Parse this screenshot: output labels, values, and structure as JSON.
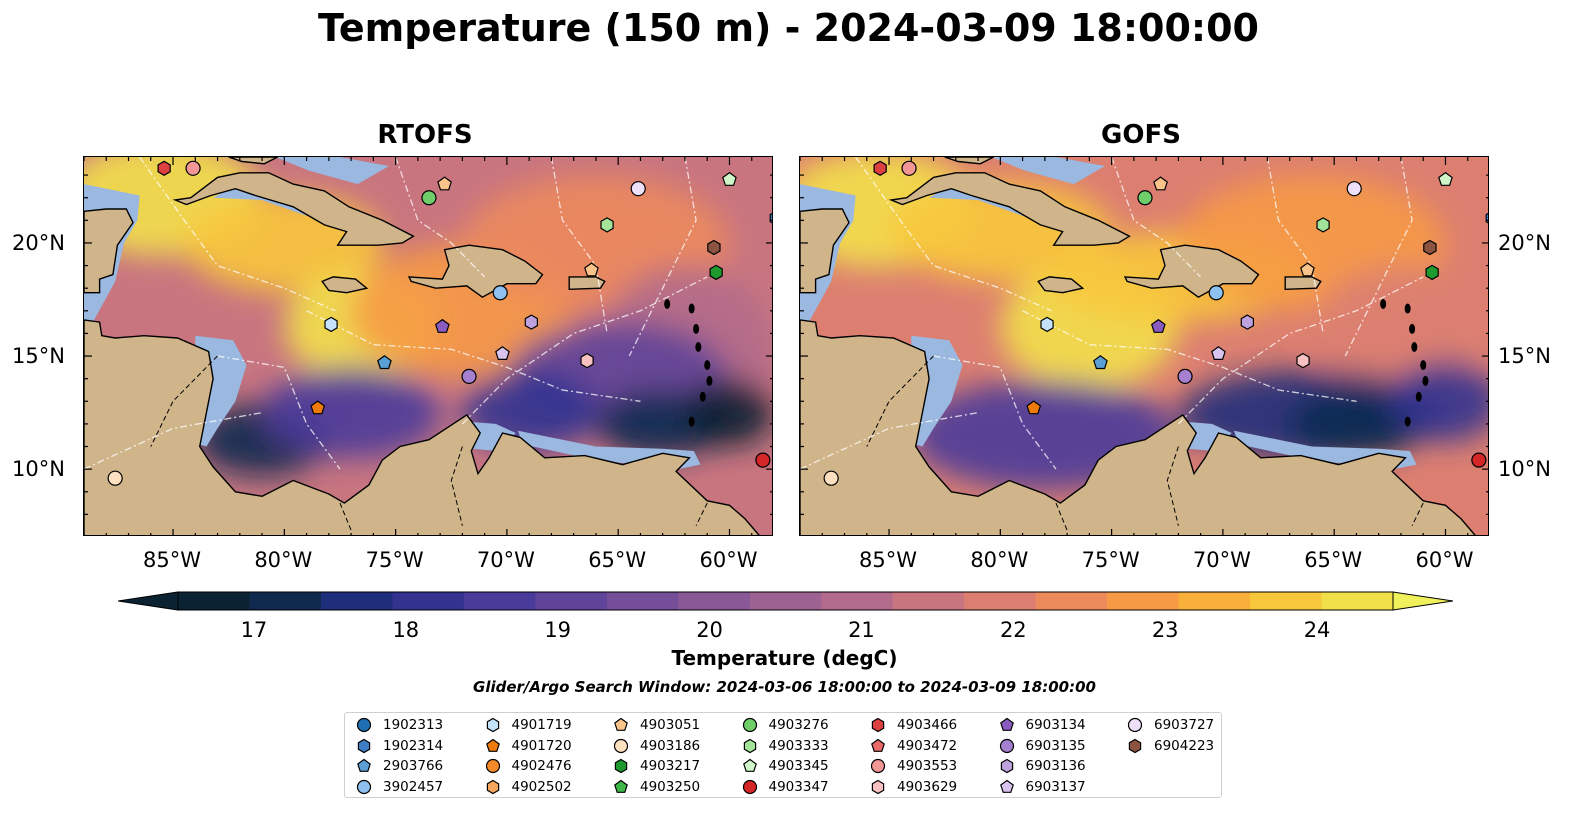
{
  "title": "Temperature (150 m) - 2024-03-09 18:00:00",
  "panels": [
    {
      "title": "RTOFS"
    },
    {
      "title": "GOFS"
    }
  ],
  "axes": {
    "lon_ticks": [
      "85°W",
      "80°W",
      "75°W",
      "70°W",
      "65°W",
      "60°W"
    ],
    "lat_ticks": [
      "20°N",
      "15°N",
      "10°N"
    ]
  },
  "colorbar": {
    "label": "Temperature (degC)",
    "ticks": [
      "17",
      "18",
      "19",
      "20",
      "21",
      "22",
      "23",
      "24"
    ],
    "min": 16.5,
    "max": 24.5,
    "colors": [
      "#0b2233",
      "#102a4f",
      "#1f2e7a",
      "#33338f",
      "#4a3a9a",
      "#5f4499",
      "#744e98",
      "#885996",
      "#9d6291",
      "#b26b8a",
      "#c87580",
      "#dc7f71",
      "#ec8a5c",
      "#f69a45",
      "#f9b03a",
      "#f8c73c",
      "#f2e04a"
    ],
    "extend_low_color": "#0b2233",
    "extend_high_color": "#f0f05a"
  },
  "search_window": "Glider/Argo Search Window: 2024-03-06 18:00:00 to 2024-03-09 18:00:00",
  "map_colors": {
    "land": "#d0b48a",
    "shelf": "#9ab8e0",
    "deep_cold": "#0c2030"
  },
  "legend": [
    {
      "id": "1902313",
      "marker": "circle",
      "color": "#1f6fb4"
    },
    {
      "id": "1902314",
      "marker": "hexagon",
      "color": "#3d7ec4"
    },
    {
      "id": "2903766",
      "marker": "pentagon",
      "color": "#5a9fd6"
    },
    {
      "id": "3902457",
      "marker": "circle",
      "color": "#8ec1ef"
    },
    {
      "id": "4901719",
      "marker": "hexagon",
      "color": "#c4e2fb"
    },
    {
      "id": "4901720",
      "marker": "pentagon",
      "color": "#f07a0a"
    },
    {
      "id": "4902476",
      "marker": "circle",
      "color": "#f58a2a"
    },
    {
      "id": "4902502",
      "marker": "hexagon",
      "color": "#f8a85e"
    },
    {
      "id": "4903051",
      "marker": "pentagon",
      "color": "#fac38a"
    },
    {
      "id": "4903186",
      "marker": "circle",
      "color": "#fde0c0"
    },
    {
      "id": "4903217",
      "marker": "hexagon",
      "color": "#1f9a2e"
    },
    {
      "id": "4903250",
      "marker": "pentagon",
      "color": "#3fb84a"
    },
    {
      "id": "4903276",
      "marker": "circle",
      "color": "#6fcd6a"
    },
    {
      "id": "4903333",
      "marker": "hexagon",
      "color": "#a4e39a"
    },
    {
      "id": "4903345",
      "marker": "pentagon",
      "color": "#cff5c8"
    },
    {
      "id": "4903347",
      "marker": "circle",
      "color": "#d62728"
    },
    {
      "id": "4903466",
      "marker": "hexagon",
      "color": "#dc4040"
    },
    {
      "id": "4903472",
      "marker": "pentagon",
      "color": "#e86a6a"
    },
    {
      "id": "4903553",
      "marker": "circle",
      "color": "#f29696"
    },
    {
      "id": "4903629",
      "marker": "hexagon",
      "color": "#f9c2c2"
    },
    {
      "id": "6903134",
      "marker": "pentagon",
      "color": "#8a5cc2"
    },
    {
      "id": "6903135",
      "marker": "circle",
      "color": "#a57fd0"
    },
    {
      "id": "6903136",
      "marker": "hexagon",
      "color": "#bea2de"
    },
    {
      "id": "6903137",
      "marker": "pentagon",
      "color": "#d9c4ef"
    },
    {
      "id": "6903727",
      "marker": "circle",
      "color": "#efe0fa"
    },
    {
      "id": "6904223",
      "marker": "hexagon",
      "color": "#8c5440"
    }
  ],
  "floats_on_map": [
    {
      "id": "4903466",
      "lon": -85.4,
      "lat": 23.3
    },
    {
      "id": "4903553",
      "lon": -84.1,
      "lat": 23.3
    },
    {
      "id": "4903051",
      "lon": -72.8,
      "lat": 22.6
    },
    {
      "id": "4903276",
      "lon": -73.5,
      "lat": 22.0
    },
    {
      "id": "6903727",
      "lon": -64.1,
      "lat": 22.4
    },
    {
      "id": "4903345",
      "lon": -60.0,
      "lat": 22.8
    },
    {
      "id": "4903333",
      "lon": -65.5,
      "lat": 20.8
    },
    {
      "id": "6904223",
      "lon": -60.7,
      "lat": 19.8
    },
    {
      "id": "4903217",
      "lon": -60.6,
      "lat": 18.7
    },
    {
      "id": "4903051",
      "lon": -66.2,
      "lat": 18.8
    },
    {
      "id": "3902457",
      "lon": -70.3,
      "lat": 17.8
    },
    {
      "id": "4901719",
      "lon": -77.9,
      "lat": 16.4
    },
    {
      "id": "6903134",
      "lon": -72.9,
      "lat": 16.3
    },
    {
      "id": "6903136",
      "lon": -68.9,
      "lat": 16.5
    },
    {
      "id": "6903137",
      "lon": -70.2,
      "lat": 15.1
    },
    {
      "id": "4903629",
      "lon": -66.4,
      "lat": 14.8
    },
    {
      "id": "2903766",
      "lon": -75.5,
      "lat": 14.7
    },
    {
      "id": "6903135",
      "lon": -71.7,
      "lat": 14.1
    },
    {
      "id": "4901720",
      "lon": -78.5,
      "lat": 12.7
    },
    {
      "id": "4903347",
      "lon": -58.5,
      "lat": 10.4
    },
    {
      "id": "4903186",
      "lon": -87.6,
      "lat": 9.6
    },
    {
      "id": "1902314",
      "lon": -57.9,
      "lat": 21.1
    }
  ]
}
